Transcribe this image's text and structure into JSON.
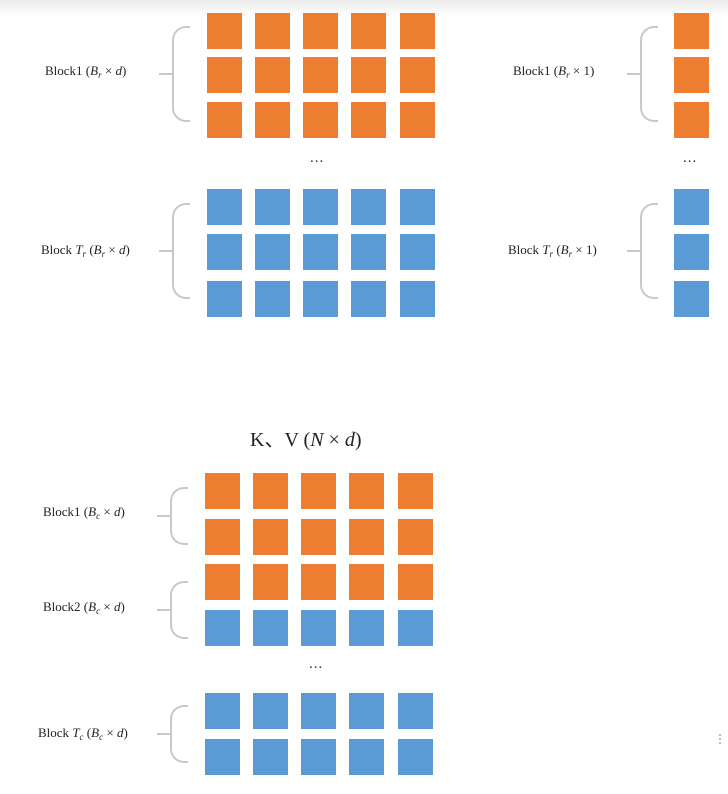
{
  "q_panel": {
    "block1_label": "Block1 (Br × d)",
    "ellipsis": "...",
    "blockT_label": "Block Tr (Br × d)"
  },
  "o_panel": {
    "block1_label": "Block1 (Br × 1)",
    "ellipsis": "...",
    "blockT_label": "Block Tr (Br × 1)"
  },
  "kv_panel": {
    "title": "K、V (N × d)",
    "block1_label": "Block1 (Bc × d)",
    "block2_label": "Block2 (Bc × d)",
    "ellipsis": "...",
    "blockT_label": "Block Tc (Bc × d)"
  },
  "colors": {
    "orange": "#ED7D31",
    "blue": "#5B9BD5",
    "brace": "#C8C8C8"
  }
}
